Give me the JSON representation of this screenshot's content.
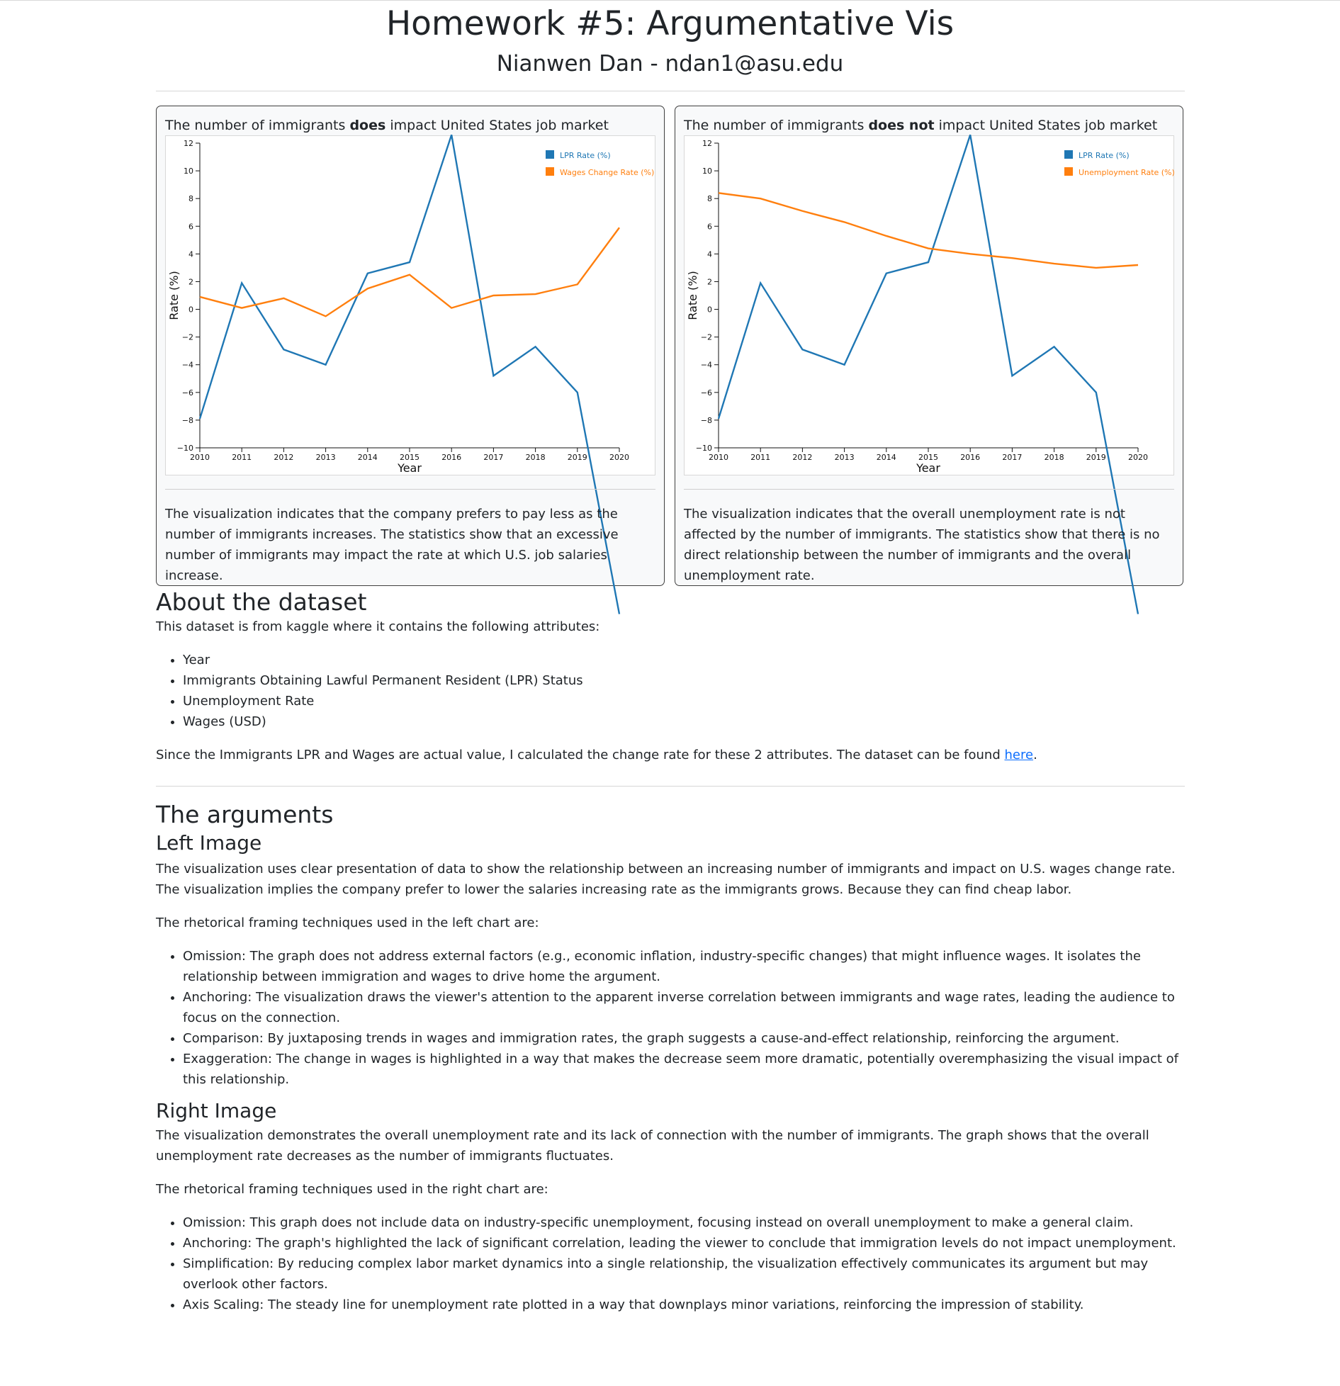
{
  "header": {
    "title": "Homework #5: Argumentative Vis",
    "subtitle": "Nianwen Dan - ndan1@asu.edu"
  },
  "cards": [
    {
      "title_prefix": "The number of immigrants ",
      "title_bold": "does",
      "title_suffix": " impact United States job market",
      "description": "The visualization indicates that the company prefers to pay less as the number of immigrants increases. The statistics show that an excessive number of immigrants may impact the rate at which U.S. job salaries increase."
    },
    {
      "title_prefix": "The number of immigrants ",
      "title_bold": "does not",
      "title_suffix": " impact United States job market",
      "description": "The visualization indicates that the overall unemployment rate is not affected by the number of immigrants. The statistics show that there is no direct relationship between the number of immigrants and the overall unemployment rate."
    }
  ],
  "chart_data": [
    {
      "type": "line",
      "xlabel": "Year",
      "ylabel": "Rate (%)",
      "x": [
        2010,
        2011,
        2012,
        2013,
        2014,
        2015,
        2016,
        2017,
        2018,
        2019,
        2020
      ],
      "x_ticks": [
        "2010",
        "2011",
        "2012",
        "2013",
        "2014",
        "2015",
        "2016",
        "2017",
        "2018",
        "2019",
        "2020"
      ],
      "ylim": [
        -10,
        12
      ],
      "y_ticks": [
        -10,
        -8,
        -6,
        -4,
        -2,
        0,
        2,
        4,
        6,
        8,
        10,
        12
      ],
      "y_tick_labels": [
        "−10",
        "−8",
        "−6",
        "−4",
        "−2",
        "0",
        "2",
        "4",
        "6",
        "8",
        "10",
        "12"
      ],
      "legend_position": "top-right",
      "series": [
        {
          "name": "LPR Rate (%)",
          "color": "#1f77b4",
          "values": [
            -7.9,
            1.9,
            -2.9,
            -4.0,
            2.6,
            3.4,
            12.6,
            -4.8,
            -2.7,
            -6.0,
            -22.0
          ]
        },
        {
          "name": "Wages Change Rate (%)",
          "color": "#ff7f0e",
          "values": [
            0.9,
            0.1,
            0.8,
            -0.5,
            1.5,
            2.5,
            0.1,
            1.0,
            1.1,
            1.8,
            5.9
          ]
        }
      ]
    },
    {
      "type": "line",
      "xlabel": "Year",
      "ylabel": "Rate (%)",
      "x": [
        2010,
        2011,
        2012,
        2013,
        2014,
        2015,
        2016,
        2017,
        2018,
        2019,
        2020
      ],
      "x_ticks": [
        "2010",
        "2011",
        "2012",
        "2013",
        "2014",
        "2015",
        "2016",
        "2017",
        "2018",
        "2019",
        "2020"
      ],
      "ylim": [
        -10,
        12
      ],
      "y_ticks": [
        -10,
        -8,
        -6,
        -4,
        -2,
        0,
        2,
        4,
        6,
        8,
        10,
        12
      ],
      "y_tick_labels": [
        "−10",
        "−8",
        "−6",
        "−4",
        "−2",
        "0",
        "2",
        "4",
        "6",
        "8",
        "10",
        "12"
      ],
      "legend_position": "top-right",
      "series": [
        {
          "name": "LPR Rate (%)",
          "color": "#1f77b4",
          "values": [
            -7.9,
            1.9,
            -2.9,
            -4.0,
            2.6,
            3.4,
            12.6,
            -4.8,
            -2.7,
            -6.0,
            -22.0
          ]
        },
        {
          "name": "Unemployment Rate (%)",
          "color": "#ff7f0e",
          "values": [
            8.4,
            8.0,
            7.1,
            6.3,
            5.3,
            4.4,
            4.0,
            3.7,
            3.3,
            3.0,
            3.2
          ]
        }
      ]
    }
  ],
  "about": {
    "heading": "About the dataset",
    "intro": "This dataset is from kaggle where it contains the following attributes:",
    "attributes": [
      "Year",
      "Immigrants Obtaining Lawful Permanent Resident (LPR) Status",
      "Unemployment Rate",
      "Wages (USD)"
    ],
    "note_prefix": "Since the Immigrants LPR and Wages are actual value, I calculated the change rate for these 2 attributes. The dataset can be found ",
    "note_link": "here",
    "note_suffix": "."
  },
  "arguments": {
    "heading": "The arguments",
    "left": {
      "heading": "Left Image",
      "paragraph": "The visualization uses clear presentation of data to show the relationship between an increasing number of immigrants and impact on U.S. wages change rate. The visualization implies the company prefer to lower the salaries increasing rate as the immigrants grows. Because they can find cheap labor.",
      "techniques_intro": "The rhetorical framing techniques used in the left chart are:",
      "techniques": [
        "Omission: The graph does not address external factors (e.g., economic inflation, industry-specific changes) that might influence wages. It isolates the relationship between immigration and wages to drive home the argument.",
        "Anchoring: The visualization draws the viewer's attention to the apparent inverse correlation between immigrants and wage rates, leading the audience to focus on the connection.",
        "Comparison: By juxtaposing trends in wages and immigration rates, the graph suggests a cause-and-effect relationship, reinforcing the argument.",
        "Exaggeration: The change in wages is highlighted in a way that makes the decrease seem more dramatic, potentially overemphasizing the visual impact of this relationship."
      ]
    },
    "right": {
      "heading": "Right Image",
      "paragraph": "The visualization demonstrates the overall unemployment rate and its lack of connection with the number of immigrants. The graph shows that the overall unemployment rate decreases as the number of immigrants fluctuates.",
      "techniques_intro": "The rhetorical framing techniques used in the right chart are:",
      "techniques": [
        "Omission: This graph does not include data on industry-specific unemployment, focusing instead on overall unemployment to make a general claim.",
        "Anchoring: The graph's highlighted the lack of significant correlation, leading the viewer to conclude that immigration levels do not impact unemployment.",
        "Simplification: By reducing complex labor market dynamics into a single relationship, the visualization effectively communicates its argument but may overlook other factors.",
        "Axis Scaling: The steady line for unemployment rate plotted in a way that downplays minor variations, reinforcing the impression of stability."
      ]
    }
  }
}
